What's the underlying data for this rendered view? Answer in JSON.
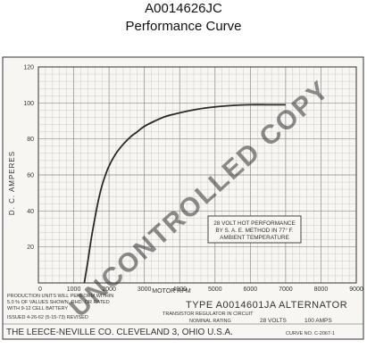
{
  "header": {
    "model": "A0014626JC",
    "subtitle": "Performance Curve"
  },
  "colors": {
    "grid_fine": "#b8b8b8",
    "grid_major": "#8a8a8a",
    "curve": "#2a2a2a",
    "paper": "#f7f6f2",
    "frame": "#333333",
    "watermark": "#d9d9d9"
  },
  "chart_data": {
    "type": "line",
    "title": "",
    "xlabel": "MOTOR RPM",
    "ylabel": "D. C. AMPERES",
    "xlim": [
      0,
      9000
    ],
    "ylim": [
      0,
      120
    ],
    "grid": true,
    "x_tick_labels": [
      "0",
      "1000",
      "2000",
      "3000",
      "4000",
      "5000",
      "6000",
      "7000",
      "8000",
      "9000"
    ],
    "y_tick_labels": [
      "20",
      "40",
      "60",
      "80",
      "100",
      "120"
    ],
    "series": [
      {
        "x": [
          1300,
          1400,
          1500,
          1600,
          1700,
          1800,
          1900,
          2000,
          2200,
          2400,
          2600,
          2800,
          3000,
          3300,
          3600,
          4000,
          4500,
          5000,
          5500,
          6000,
          6500,
          7000
        ],
        "y": [
          0,
          12,
          25,
          36,
          46,
          54,
          60,
          65,
          72,
          77,
          81,
          84,
          87,
          90,
          92.5,
          94.5,
          96.5,
          97.8,
          98.6,
          99,
          99,
          99
        ]
      }
    ],
    "annotation": [
      "28 VOLT HOT PERFORMANCE",
      "BY S. A. E. METHOD IN 77° F.",
      "AMBIENT TEMPERATURE"
    ]
  },
  "footer": {
    "production_note": [
      "PRODUCTION UNITS WILL PERFORM WITHIN",
      "5.0 % OF VALUES SHOWN, RHD. OR RATED",
      "WITH 9-12 CELL BATTERY"
    ],
    "issued": "ISSUED 4-26-62 (5-15-73) REVISED",
    "type_label": "TYPE A0014601JA ALTERNATOR",
    "transistor_note": "TRANSISTOR REGULATOR IN CIRCUIT",
    "nominal_rating": "NOMINAL RATING",
    "volts": "28 VOLTS",
    "amps": "100 AMPS",
    "company": "THE LEECE-NEVILLE CO. CLEVELAND 3, OHIO U.S.A.",
    "curve_no": "CURVE NO. C-2067-1"
  },
  "watermark": "UNCONTROLLED COPY"
}
